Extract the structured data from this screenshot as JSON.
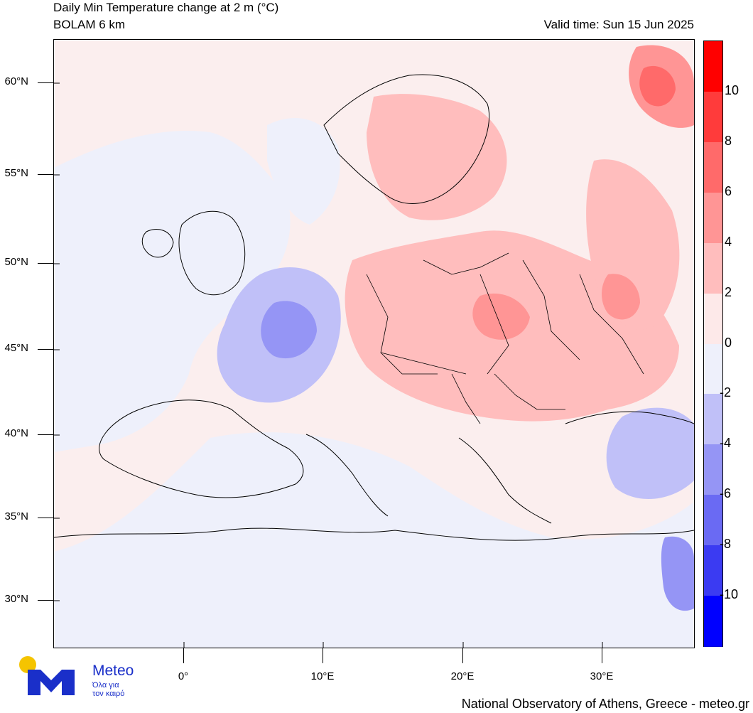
{
  "header": {
    "title": "Daily Min Temperature change at 2 m (°C)",
    "model": "BOLAM 6 km",
    "valid_time": "Valid time: Sun 15 Jun 2025"
  },
  "map": {
    "lat_labels": [
      "60°N",
      "55°N",
      "50°N",
      "45°N",
      "40°N",
      "35°N",
      "30°N"
    ],
    "lon_labels": [
      "0°",
      "10°E",
      "20°E",
      "30°E"
    ]
  },
  "colorbar": {
    "labels": [
      "10",
      "8",
      "6",
      "4",
      "2",
      "0",
      "-2",
      "-4",
      "-6",
      "-8",
      "-10"
    ],
    "colors": [
      "#ff0000",
      "#ff3b3b",
      "#ff6a6a",
      "#ff9595",
      "#ffbdbd",
      "#fde9e9",
      "#eef0fb",
      "#c0c0f8",
      "#9595f5",
      "#6a6af3",
      "#3b3bf2",
      "#0000ff"
    ]
  },
  "logo": {
    "name": "Meteo",
    "tagline_1": "Όλα για",
    "tagline_2": "τον καιρό",
    "brand_color": "#1a2fc9",
    "sun_color": "#f5c400"
  },
  "footer": {
    "credit": "National Observatory of Athens, Greece - meteo.gr"
  }
}
